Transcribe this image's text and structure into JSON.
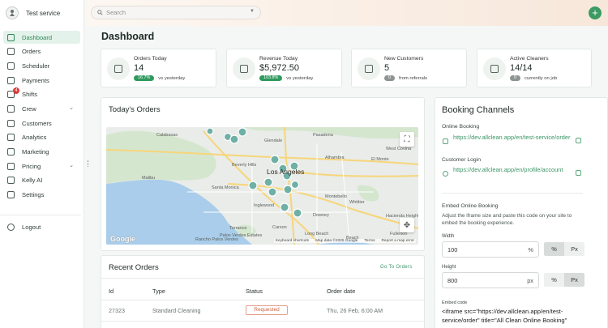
{
  "brand": {
    "name": "Test service"
  },
  "sidebar": {
    "items": [
      {
        "label": "Dashboard",
        "icon": "dashboard-icon",
        "active": true
      },
      {
        "label": "Orders",
        "icon": "orders-icon"
      },
      {
        "label": "Scheduler",
        "icon": "calendar-icon"
      },
      {
        "label": "Payments",
        "icon": "payments-icon"
      },
      {
        "label": "Shifts",
        "icon": "shifts-icon",
        "badge": "4"
      },
      {
        "label": "Crew",
        "icon": "crew-icon",
        "expandable": true
      },
      {
        "label": "Customers",
        "icon": "customers-icon"
      },
      {
        "label": "Analytics",
        "icon": "analytics-icon"
      },
      {
        "label": "Marketing",
        "icon": "marketing-icon"
      },
      {
        "label": "Pricing",
        "icon": "pricing-icon",
        "expandable": true
      },
      {
        "label": "Kelly AI",
        "icon": "ai-icon"
      },
      {
        "label": "Settings",
        "icon": "gear-icon"
      }
    ],
    "logout": "Logout"
  },
  "search": {
    "placeholder": "Search"
  },
  "page": {
    "title": "Dashboard"
  },
  "stats": [
    {
      "label": "Orders Today",
      "value": "14",
      "badge": "16.7%",
      "foot": "vs yesterday",
      "badge_color": "#2f9a5e"
    },
    {
      "label": "Revenue Today",
      "value": "$5,972.50",
      "badge": "103.8%",
      "foot": "vs yesterday",
      "badge_color": "#2f9a5e"
    },
    {
      "label": "New Customers",
      "value": "5",
      "badge": "0",
      "foot": "from referrals",
      "badge_color": "#8e9490"
    },
    {
      "label": "Active Cleaners",
      "value": "14/14",
      "badge": "0",
      "foot": "currently on job",
      "badge_color": "#8e9490"
    }
  ],
  "todays_orders": {
    "title": "Today's Orders",
    "map": {
      "labels": [
        "Calabasas",
        "Glendale",
        "Pasadena",
        "Beverly Hills",
        "Los Angeles",
        "Alhambra",
        "El Monte",
        "West Covina",
        "Malibu",
        "Santa Monica",
        "Inglewood",
        "Montebello",
        "Whittier",
        "Downey",
        "Torrance",
        "Long Beach",
        "Palos Verdes Estates",
        "Carson",
        "Hacienda Heights",
        "Rancho Palos Verdes",
        "Beach",
        "Fullerton"
      ],
      "attribution": [
        "Keyboard shortcuts",
        "Map data ©2025 Google",
        "Terms",
        "Report a map error"
      ],
      "google": "Google"
    }
  },
  "recent_orders": {
    "title": "Recent Orders",
    "link": "Go To Orders",
    "columns": [
      "Id",
      "Type",
      "Status",
      "Order date"
    ],
    "rows": [
      {
        "id": "27323",
        "type": "Standard Cleaning",
        "status": "Requested",
        "date": "Thu, 26 Feb, 6:00 AM"
      }
    ]
  },
  "booking": {
    "title": "Booking Channels",
    "online_label": "Online Booking",
    "online_url": "https://dev.allclean.app/en/test-service/order",
    "login_label": "Customer Login",
    "login_url": "https://dev.allclean.app/en/profile/account",
    "embed_title": "Embed Online Booking",
    "embed_note": "Adjust the iframe size and paste this code on your site to embed the booking experience.",
    "width_label": "Width",
    "width_value": "100",
    "width_unit": "%",
    "height_label": "Height",
    "height_value": "800",
    "height_unit": "px",
    "unit_options": [
      "%",
      "Px"
    ],
    "code_label": "Embed code",
    "code": "<iframe src=\"https://dev.allclean.app/en/test-service/order\" title=\"All Clean Online Booking\""
  },
  "colors": {
    "accent": "#3a9566",
    "danger": "#d93b3b",
    "status_requested": "#d0613f"
  }
}
